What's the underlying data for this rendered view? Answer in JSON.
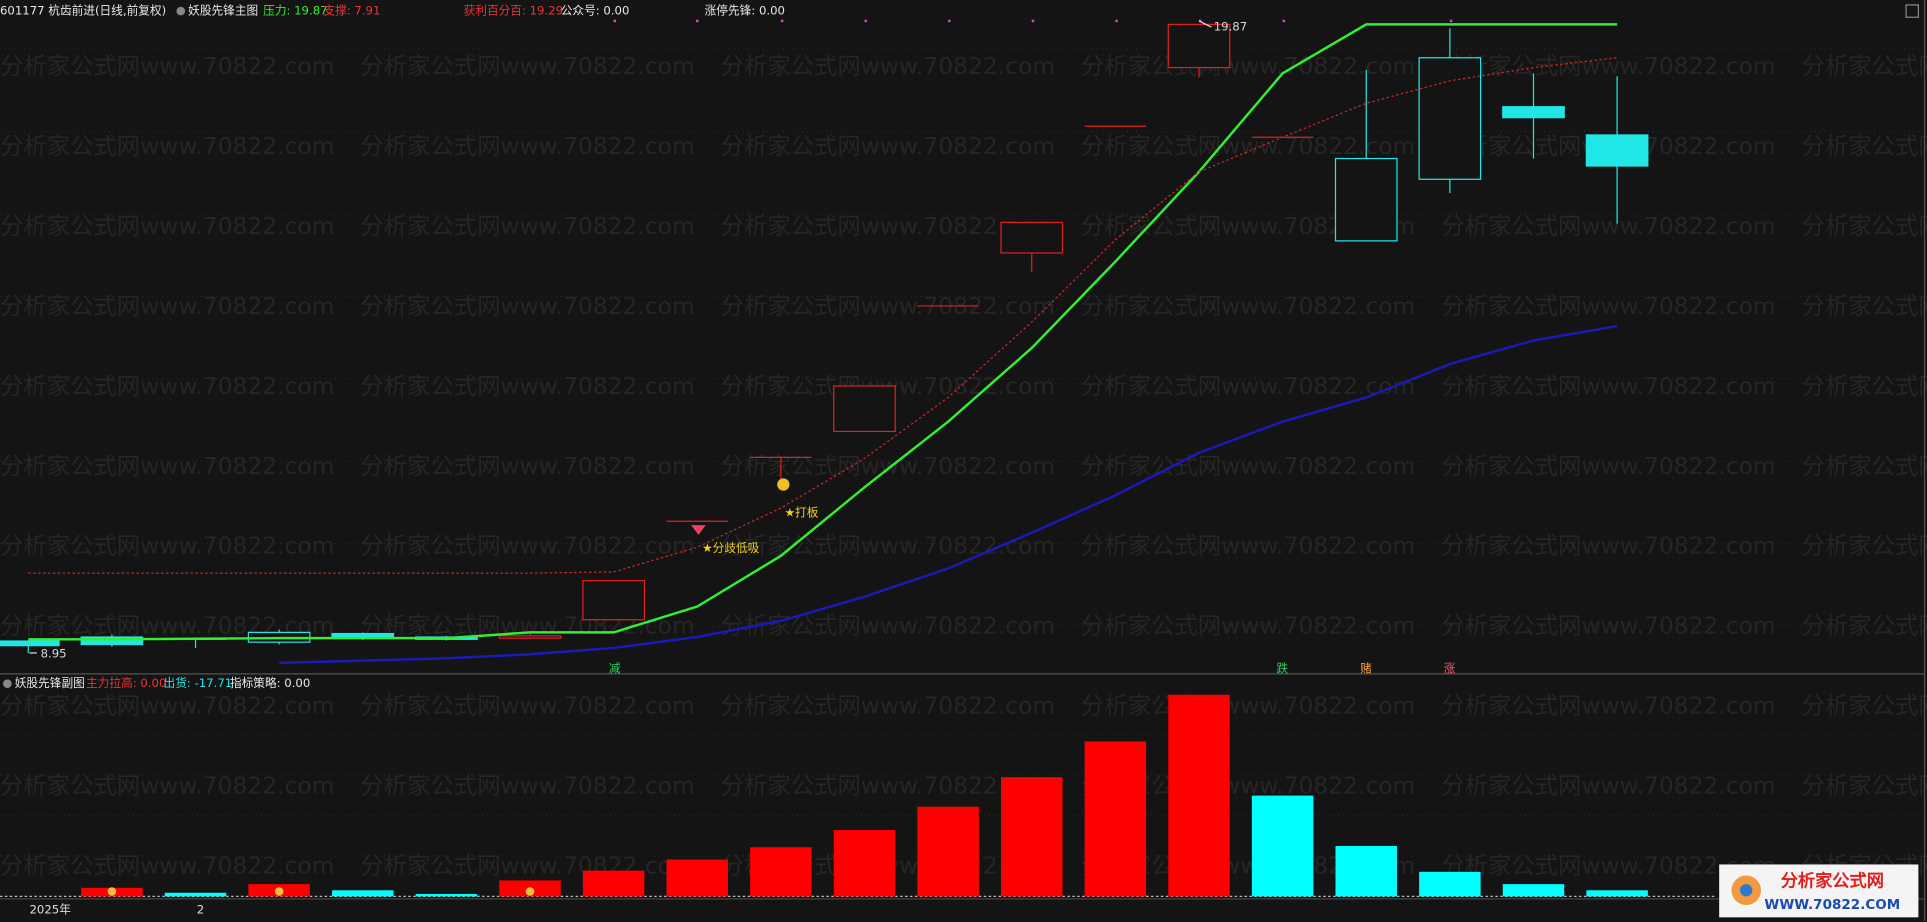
{
  "watermark": "分析家公式网www.70822.com",
  "logo": {
    "title": "分析家公式网",
    "url": "WWW.70822.COM"
  },
  "chart_data": [
    {
      "type": "candlestick",
      "title": "妖股先锋主图",
      "header": [
        {
          "text": "601177 杭齿前进(日线,前复权)",
          "color": "#e8e8e8"
        },
        {
          "text": "妖股先锋主图",
          "color": "#e8e8e8"
        },
        {
          "text": "压力: 19.87",
          "color": "#33ee33"
        },
        {
          "text": "支撑: 7.91",
          "color": "#ee3333"
        },
        {
          "text": "获利百分百: 19.29",
          "color": "#ee3333"
        },
        {
          "text": "公众号: 0.00",
          "color": "#e8e8e8"
        },
        {
          "text": "涨停先锋: 0.00",
          "color": "#e8e8e8"
        }
      ],
      "categories": [
        "2025年",
        null,
        "2",
        null,
        null,
        null,
        null,
        null,
        null,
        null,
        null,
        null,
        null,
        null,
        null,
        null,
        null,
        null,
        null,
        null
      ],
      "open": [
        9.16,
        9.23,
        9.19,
        9.14,
        9.29,
        9.23,
        9.21,
        9.53,
        11.24,
        12.35,
        12.8,
        14.98,
        15.9,
        18.1,
        19.12,
        17.91,
        16.11,
        17.18,
        18.44,
        17.95
      ],
      "high": [
        9.16,
        9.27,
        9.19,
        9.36,
        9.31,
        9.25,
        9.29,
        10.21,
        11.24,
        12.35,
        13.59,
        14.98,
        16.43,
        18.1,
        19.87,
        17.91,
        19.08,
        19.8,
        19.02,
        18.97
      ],
      "low": [
        8.95,
        9.06,
        9.04,
        9.1,
        9.18,
        9.17,
        9.19,
        9.53,
        11.24,
        11.86,
        12.8,
        14.98,
        15.57,
        18.1,
        18.95,
        17.91,
        16.11,
        16.94,
        17.54,
        16.41
      ],
      "close": [
        9.08,
        9.1,
        9.19,
        9.31,
        9.21,
        9.19,
        9.25,
        10.21,
        11.24,
        12.35,
        13.59,
        14.98,
        16.43,
        18.1,
        19.87,
        17.91,
        17.54,
        19.29,
        18.25,
        17.41
      ],
      "candle_colors": [
        "#20e6e6",
        "#20e6e6",
        "#20e6e6",
        "#20e6e6",
        "#20e6e6",
        "#20e6e6",
        "#e02020",
        "#e02020",
        "#e02020",
        "#e02020",
        "#e02020",
        "#e02020",
        "#e02020",
        "#e02020",
        "#e02020",
        "#e02020",
        "#20e6e6",
        "#20e6e6",
        "#20e6e6",
        "#20e6e6"
      ],
      "series": [
        {
          "name": "压力",
          "color": "#33ee33",
          "style": "solid",
          "values": [
            9.19,
            9.19,
            9.2,
            9.21,
            9.21,
            9.21,
            9.31,
            9.31,
            9.76,
            10.64,
            11.83,
            12.97,
            14.25,
            15.75,
            17.31,
            19.02,
            19.87,
            19.87,
            19.87,
            19.87
          ]
        },
        {
          "name": "获利百分百",
          "color": "#d02828",
          "style": "dotted",
          "values": [
            10.34,
            10.34,
            10.34,
            10.34,
            10.34,
            10.34,
            10.34,
            10.36,
            10.79,
            11.47,
            12.33,
            13.39,
            14.7,
            16.13,
            17.31,
            17.91,
            18.5,
            18.89,
            19.12,
            19.29
          ]
        },
        {
          "name": null,
          "color": "#1a1ab8",
          "style": "solid",
          "values": [
            null,
            null,
            null,
            8.78,
            8.82,
            8.86,
            8.93,
            9.04,
            9.23,
            9.51,
            9.93,
            10.42,
            11.04,
            11.69,
            12.43,
            12.97,
            13.39,
            13.97,
            14.38,
            14.63
          ]
        }
      ],
      "annotations": [
        {
          "text": "19.87",
          "color": "#d8d8d8"
        },
        {
          "text": "8.95",
          "color": "#d8d8d8"
        },
        {
          "text": "★打板",
          "color": "#f0d020"
        },
        {
          "text": "★分歧低吸",
          "color": "#f0d020"
        },
        {
          "text": "减",
          "color": "#30d060"
        },
        {
          "text": "跌",
          "color": "#30d060"
        },
        {
          "text": "赌",
          "color": "#f0a040"
        },
        {
          "text": "涨",
          "color": "#f06070"
        }
      ],
      "ylim": [
        8.59,
        20.08
      ]
    },
    {
      "type": "bar",
      "title": "妖股先锋副图",
      "header": [
        {
          "text": "妖股先锋副图",
          "color": "#e8e8e8"
        },
        {
          "text": "主力拉高: 0.00",
          "color": "#ee3333"
        },
        {
          "text": "出货: -17.71",
          "color": "#20e6e6"
        },
        {
          "text": "指标策略: 0.00",
          "color": "#e8e8e8"
        }
      ],
      "values": [
        null,
        0.7,
        0.3,
        1.0,
        0.5,
        0.2,
        1.3,
        2.1,
        3.0,
        4.0,
        5.4,
        7.3,
        9.7,
        12.6,
        16.4,
        8.2,
        4.1,
        2.0,
        1.0,
        0.5
      ],
      "colors": [
        null,
        "#ff0000",
        "#00ffff",
        "#ff0000",
        "#00ffff",
        "#00ffff",
        "#ff0000",
        "#ff0000",
        "#ff0000",
        "#ff0000",
        "#ff0000",
        "#ff0000",
        "#ff0000",
        "#ff0000",
        "#ff0000",
        "#00ffff",
        "#00ffff",
        "#00ffff",
        "#00ffff",
        "#00ffff"
      ],
      "ylim": [
        0,
        16.6
      ]
    }
  ]
}
